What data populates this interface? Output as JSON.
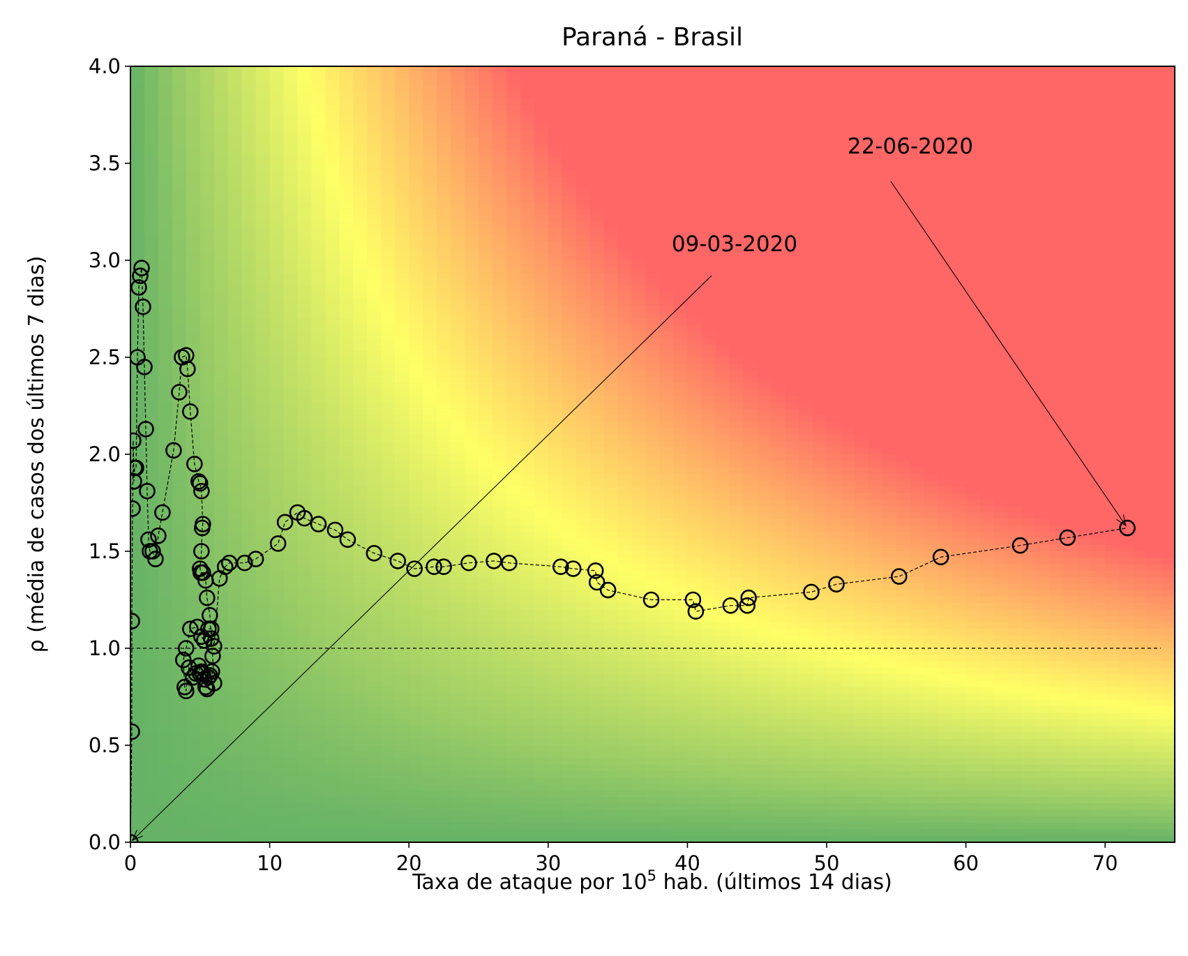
{
  "chart_data": {
    "type": "scatter",
    "title": "Paraná - Brasil",
    "xlabel": "Taxa de ataque por 10",
    "xlabel_superscript": "5",
    "xlabel_suffix": " hab. (últimos 14 dias)",
    "ylabel": "ρ (média de casos dos últimos 7 dias)",
    "xlim": [
      0,
      75
    ],
    "ylim": [
      0,
      4
    ],
    "xticks": [
      0,
      10,
      20,
      30,
      40,
      50,
      60,
      70
    ],
    "yticks": [
      "0.0",
      "0.5",
      "1.0",
      "1.5",
      "2.0",
      "2.5",
      "3.0",
      "3.5",
      "4.0"
    ],
    "reference_line_y": 1.0,
    "background": "risk heatmap (green low risk → yellow → red high risk)",
    "colors": {
      "green": "#66b266",
      "yellow": "#ffff66",
      "red": "#ff6666"
    },
    "annotations": [
      {
        "text": "09-03-2020",
        "point": [
          0,
          0
        ]
      },
      {
        "text": "22-06-2020",
        "point": [
          71.6,
          1.62
        ]
      }
    ],
    "series": [
      {
        "x": [
          0,
          0.1,
          0.1,
          0.15,
          0.2,
          0.25,
          0.3,
          0.4,
          0.5,
          0.6,
          0.7,
          0.8,
          0.9,
          1.0,
          1.1,
          1.2,
          1.3,
          1.4,
          1.6,
          1.8,
          2.0,
          2.3,
          3.1,
          3.5,
          3.7,
          4.0,
          4.1,
          4.3,
          4.6,
          4.9,
          5.0,
          5.1,
          5.2,
          5.15,
          5.1,
          5.0,
          5.05,
          5.2,
          5.4,
          5.5,
          5.7,
          5.8,
          5.9,
          6.0,
          5.85,
          5.7,
          5.6,
          5.5,
          5.4,
          5.3,
          5.2,
          5.1,
          5.0,
          4.9,
          4.7,
          4.5,
          4.2,
          4.0,
          3.9,
          3.8,
          4.0,
          4.3,
          4.8,
          5.1,
          5.3,
          5.6,
          5.8,
          6.0,
          6.4,
          6.8,
          7.1,
          8.2,
          9.0,
          10.6,
          11.1,
          12.0,
          12.5,
          13.5,
          14.7,
          15.6,
          17.5,
          19.2,
          20.4,
          21.8,
          22.5,
          24.3,
          26.1,
          27.2,
          30.9,
          31.8,
          33.4,
          33.5,
          34.3,
          37.4,
          40.4,
          40.6,
          43.1,
          44.3,
          44.4,
          48.9,
          50.7,
          55.2,
          58.2,
          63.9,
          67.3,
          71.6
        ],
        "y": [
          0,
          0.57,
          1.14,
          1.72,
          2.07,
          1.86,
          1.93,
          1.93,
          2.5,
          2.86,
          2.92,
          2.96,
          2.76,
          2.45,
          2.13,
          1.81,
          1.56,
          1.5,
          1.5,
          1.46,
          1.58,
          1.7,
          2.02,
          2.32,
          2.5,
          2.51,
          2.44,
          2.22,
          1.95,
          1.86,
          1.85,
          1.81,
          1.64,
          1.62,
          1.5,
          1.41,
          1.39,
          1.39,
          1.35,
          1.26,
          1.17,
          1.05,
          0.96,
          0.82,
          0.88,
          0.86,
          0.85,
          0.79,
          0.8,
          0.84,
          0.87,
          0.88,
          0.87,
          0.91,
          0.87,
          0.85,
          0.9,
          0.78,
          0.8,
          0.94,
          1.0,
          1.1,
          1.11,
          1.06,
          1.04,
          1.1,
          1.1,
          1.01,
          1.36,
          1.42,
          1.44,
          1.44,
          1.46,
          1.54,
          1.65,
          1.7,
          1.67,
          1.64,
          1.61,
          1.56,
          1.49,
          1.45,
          1.41,
          1.42,
          1.42,
          1.44,
          1.45,
          1.44,
          1.42,
          1.41,
          1.4,
          1.34,
          1.3,
          1.25,
          1.25,
          1.19,
          1.22,
          1.22,
          1.26,
          1.29,
          1.33,
          1.37,
          1.47,
          1.53,
          1.57,
          1.62
        ]
      }
    ]
  }
}
